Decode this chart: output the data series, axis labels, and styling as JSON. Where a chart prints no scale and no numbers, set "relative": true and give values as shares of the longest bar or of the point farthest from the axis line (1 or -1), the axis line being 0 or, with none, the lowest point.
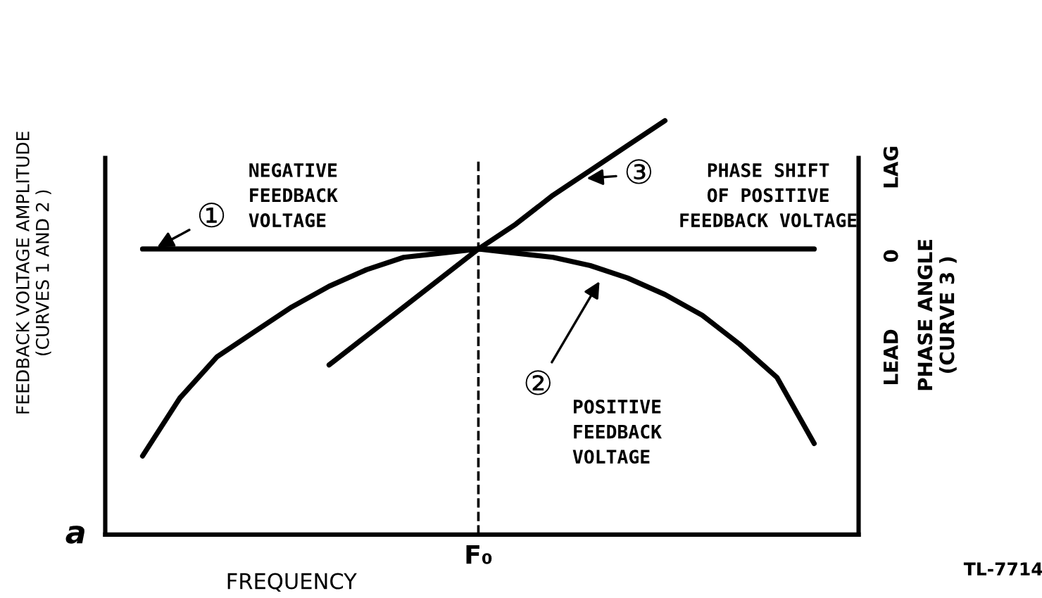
{
  "chart_data": {
    "type": "line",
    "relative": true,
    "xlabel": "FREQUENCY",
    "ylabel": "FEEDBACK VOLTAGE AMPLITUDE\n(CURVES 1 AND 2 )",
    "y2label": "PHASE ANGLE\n(CURVE 3 )",
    "categories": [
      null,
      null,
      null,
      null,
      null,
      null,
      null,
      null,
      null,
      null,
      null,
      null,
      null,
      null,
      null,
      null,
      null,
      null,
      null,
      null,
      null
    ],
    "series": [
      {
        "color": "#000000",
        "values": [
          null,
          0.69,
          0.69,
          0.69,
          0.69,
          0.69,
          0.69,
          0.69,
          0.69,
          0.69,
          0.69,
          0.69,
          0.69,
          0.69,
          0.69,
          0.69,
          0.69,
          0.69,
          0.69,
          0.69,
          null
        ]
      },
      {
        "color": "#000000",
        "values": [
          null,
          0.19,
          0.33,
          0.43,
          0.49,
          0.55,
          0.6,
          0.64,
          0.67,
          0.68,
          0.69,
          0.68,
          0.67,
          0.65,
          0.62,
          0.58,
          0.53,
          0.46,
          0.38,
          0.22,
          null
        ]
      },
      {
        "color": "#000000",
        "values": [
          null,
          null,
          null,
          null,
          null,
          null,
          0.41,
          0.48,
          0.55,
          0.62,
          0.69,
          0.75,
          0.82,
          0.88,
          0.94,
          1.0,
          null,
          null,
          null,
          null,
          null
        ]
      }
    ],
    "annotations": [
      "a",
      "LEAD",
      "0",
      "LAG",
      "TL-7714",
      "NEGATIVE\nFEEDBACK\nVOLTAGE",
      "POSITIVE\nFEEDBACK\nVOLTAGE",
      "PHASE SHIFT\nOF POSITIVE\nFEEDBACK VOLTAGE",
      "F₀",
      "①",
      "②",
      "③"
    ],
    "line_style": "solid"
  }
}
